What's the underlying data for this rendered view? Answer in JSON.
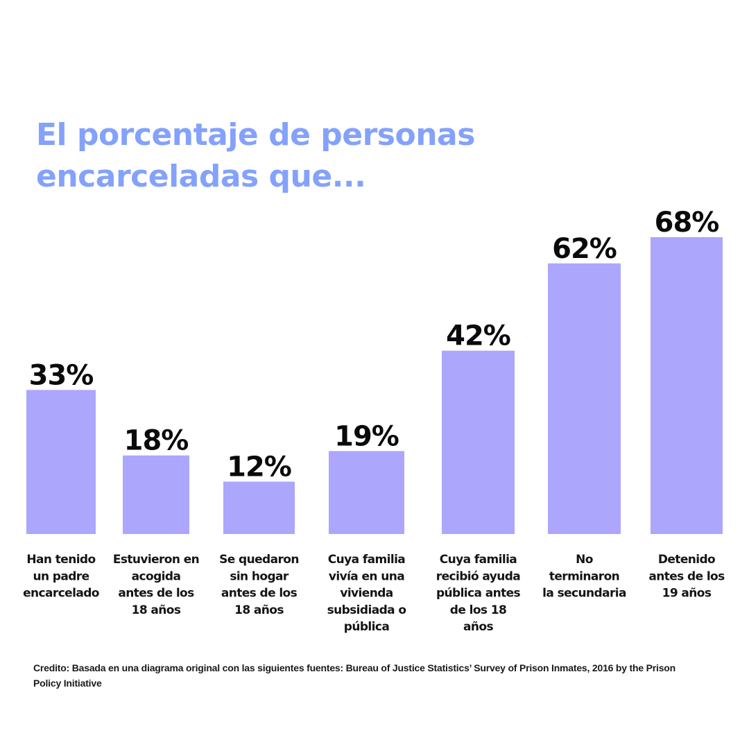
{
  "title": {
    "line1": "El porcentaje de personas",
    "line2": "encarceladas que..."
  },
  "colors": {
    "title": "#84a2fb",
    "bar": "#aca6fd",
    "label": "#0a0a0a"
  },
  "chart_data": {
    "type": "bar",
    "categories": [
      "Han tenido un padre encarcelado",
      "Estuvieron en acogida antes de los 18 años",
      "Se quedaron sin hogar antes de los 18 años",
      "Cuya familia vivía en una vivienda subsidiada o pública",
      "Cuya familia recibió ayuda pública antes de los 18 años",
      "No terminaron la secundaria",
      "Detenido antes de los 19 años"
    ],
    "category_lines": [
      [
        "Han tenido",
        "un padre",
        "encarcelado"
      ],
      [
        "Estuvieron en",
        "acogida",
        "antes de los",
        "18 años"
      ],
      [
        "Se quedaron",
        "sin hogar",
        "antes de los",
        "18 años"
      ],
      [
        "Cuya familia",
        "vivía en una",
        "vivienda",
        "subsidiada o",
        "pública"
      ],
      [
        "Cuya familia",
        "recibió ayuda",
        "pública antes",
        "de los 18",
        "años"
      ],
      [
        "No",
        "terminaron",
        "la secundaria"
      ],
      [
        "Detenido",
        "antes de los",
        "19 años"
      ]
    ],
    "values": [
      33,
      18,
      12,
      19,
      42,
      62,
      68
    ],
    "value_labels": [
      "33%",
      "18%",
      "12%",
      "19%",
      "42%",
      "62%",
      "68%"
    ],
    "title": "El porcentaje de personas encarceladas que...",
    "xlabel": "",
    "ylabel": "",
    "ylim": [
      0,
      68
    ],
    "grid": false,
    "legend": "none"
  },
  "credit": "Credito: Basada en una diagrama original con las siguientes fuentes: Bureau of Justice Statistics’ Survey of Prison Inmates, 2016 by the Prison Policy Initiative"
}
